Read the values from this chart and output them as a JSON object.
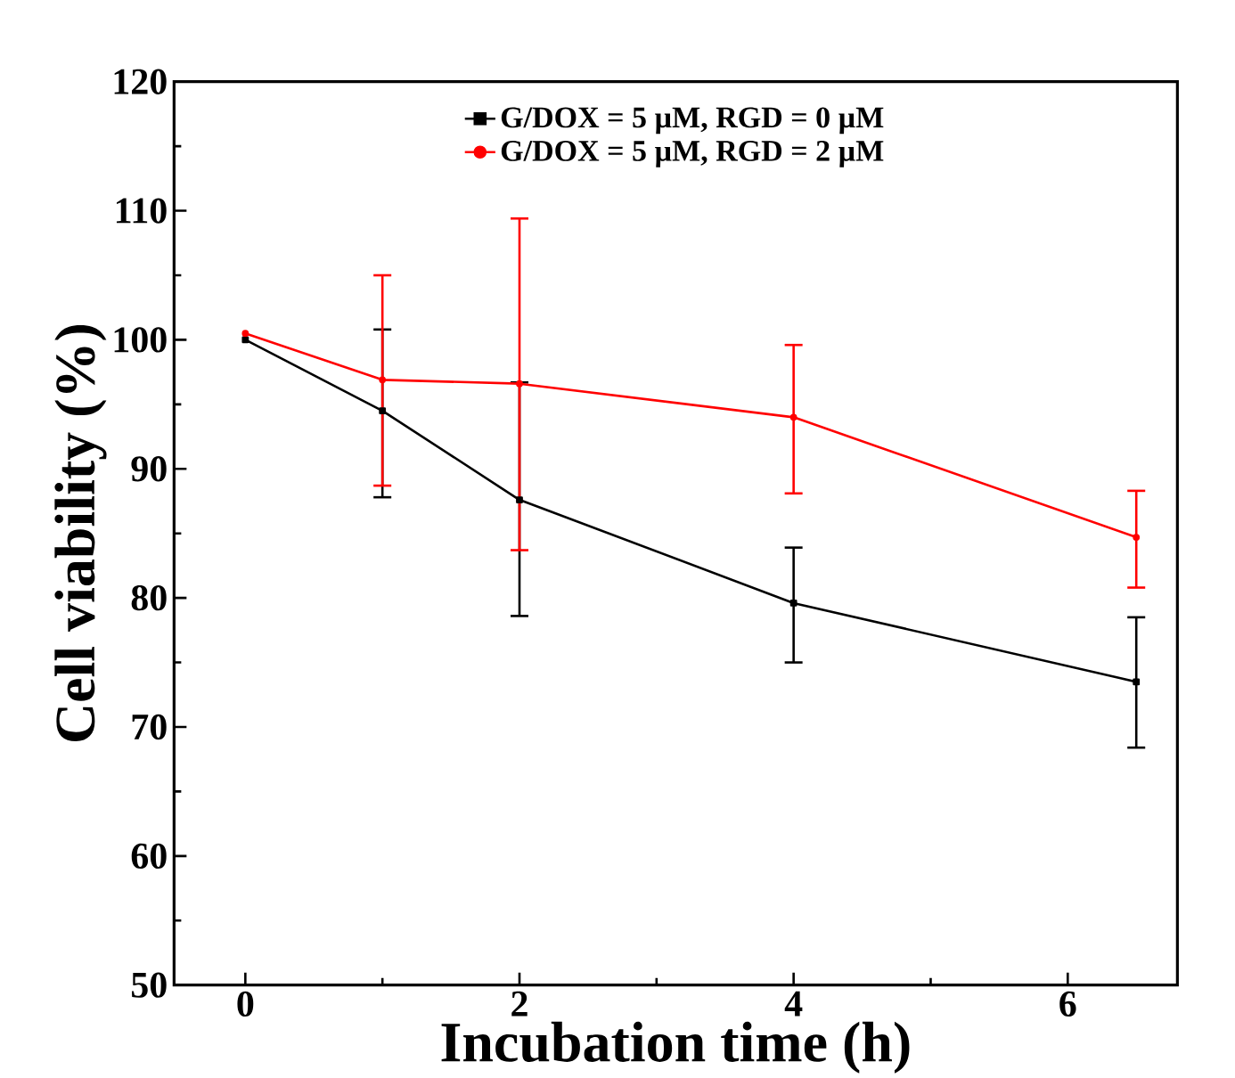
{
  "chart_data": {
    "type": "line",
    "xlabel": "Incubation time (h)",
    "ylabel": "Cell viability (%)",
    "x": [
      0,
      1,
      2,
      4,
      6.5
    ],
    "series": [
      {
        "name": "G/DOX = 5 µM, RGD = 0 µM",
        "color": "#000000",
        "marker": "square",
        "values": [
          100,
          94.5,
          87.6,
          79.6,
          73.5
        ],
        "errors": [
          null,
          [
            87.8,
            100.8
          ],
          [
            78.6,
            96.7
          ],
          [
            75.0,
            83.9
          ],
          [
            68.4,
            78.5
          ]
        ]
      },
      {
        "name": "G/DOX = 5 µM, RGD = 2 µM",
        "color": "#ff0000",
        "marker": "circle",
        "values": [
          100.5,
          96.9,
          96.6,
          94.0,
          84.7
        ],
        "errors": [
          null,
          [
            88.7,
            105.0
          ],
          [
            83.7,
            109.4
          ],
          [
            88.1,
            99.6
          ],
          [
            80.8,
            88.3
          ]
        ]
      }
    ],
    "xlim": [
      -0.52,
      6.8
    ],
    "ylim": [
      50,
      120
    ],
    "xticks": [
      0,
      2,
      4,
      6
    ],
    "yticks": [
      50,
      60,
      70,
      80,
      90,
      100,
      110,
      120
    ],
    "grid": false,
    "legend": "top",
    "line_style": "solid"
  }
}
